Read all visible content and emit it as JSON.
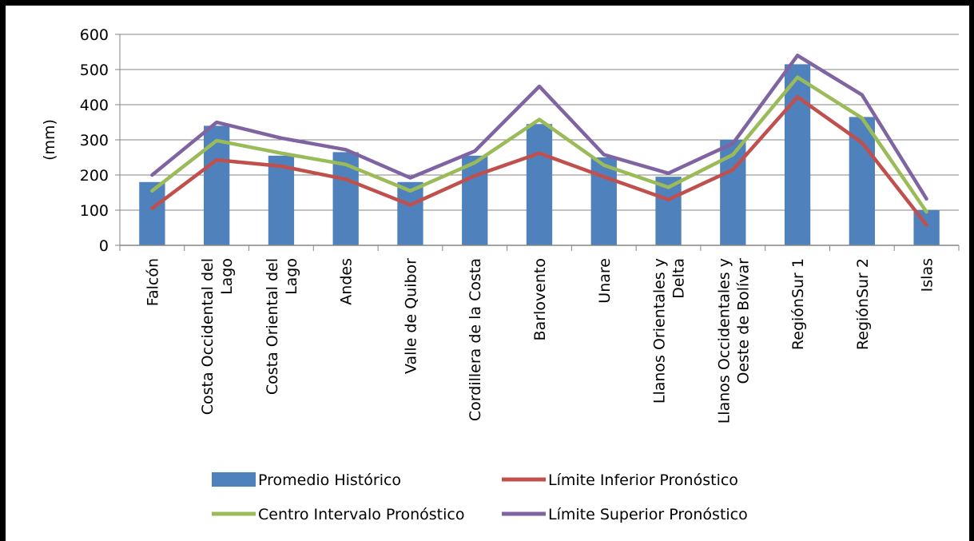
{
  "chart_data": {
    "type": "bar",
    "title": "",
    "ylabel": "(mm)",
    "xlabel": "",
    "ylim": [
      0,
      600
    ],
    "yticks": [
      0,
      100,
      200,
      300,
      400,
      500,
      600
    ],
    "grid": true,
    "legend_position": "bottom",
    "categories": [
      [
        "Falcón"
      ],
      [
        "Costa Occidental del",
        "Lago"
      ],
      [
        "Costa Oriental del",
        "Lago"
      ],
      [
        "Andes"
      ],
      [
        "Valle de Quibor"
      ],
      [
        "Cordillera de la Costa"
      ],
      [
        "Barlovento"
      ],
      [
        "Unare"
      ],
      [
        "Llanos Orientales y",
        "Delta"
      ],
      [
        "Llanos Occidentales y",
        "Oeste de Bolívar"
      ],
      [
        "RegiónSur 1"
      ],
      [
        "RegiónSur 2"
      ],
      [
        "Islas"
      ]
    ],
    "series": [
      {
        "name": "Promedio Histórico",
        "kind": "bar",
        "color": "#4F81BD",
        "values": [
          180,
          340,
          255,
          265,
          180,
          255,
          345,
          250,
          195,
          300,
          515,
          365,
          100
        ]
      },
      {
        "name": "Límite Inferior Pronóstico",
        "kind": "line",
        "color": "#C0504D",
        "values": [
          105,
          243,
          225,
          188,
          115,
          198,
          262,
          195,
          130,
          215,
          422,
          292,
          58
        ]
      },
      {
        "name": "Centro Intervalo Pronóstico",
        "kind": "line",
        "color": "#9BBB59",
        "values": [
          155,
          298,
          262,
          230,
          155,
          235,
          358,
          228,
          165,
          258,
          478,
          362,
          95
        ]
      },
      {
        "name": "Límite Superior Pronóstico",
        "kind": "line",
        "color": "#8064A2",
        "values": [
          200,
          350,
          305,
          272,
          192,
          268,
          452,
          258,
          205,
          290,
          540,
          428,
          132
        ]
      }
    ]
  }
}
